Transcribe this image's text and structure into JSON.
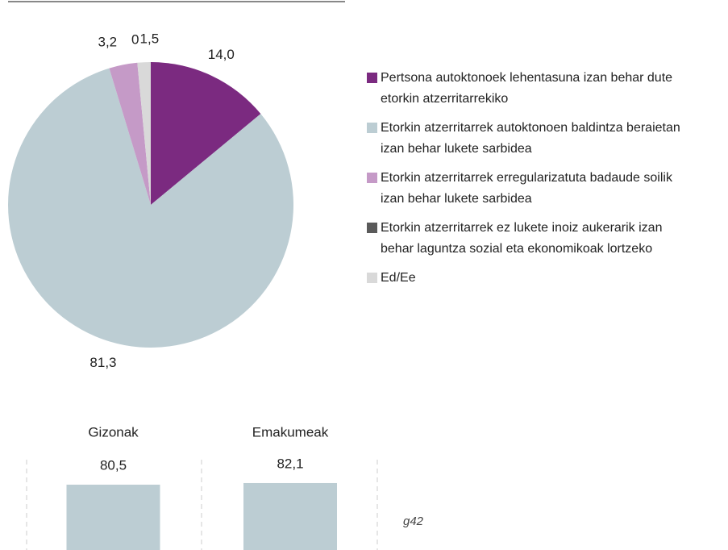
{
  "chart_data": [
    {
      "type": "pie",
      "categories": [
        "Pertsona autoktonoek lehentasuna izan behar dute etorkin atzerritarrekiko",
        "Etorkin atzerritarrek autoktonoen baldintza beraietan izan behar lukete sarbidea",
        "Etorkin atzerritarrek erregularizatuta badaude soilik izan behar lukete sarbidea",
        "Etorkin atzerritarrek ez lukete inoiz aukerarik izan behar laguntza sozial eta ekonomikoak lortzeko",
        "Ed/Ee"
      ],
      "values": [
        14.0,
        81.3,
        3.2,
        0,
        1.5
      ],
      "value_labels": [
        "14,0",
        "81,3",
        "3,2",
        "0",
        "1,5"
      ],
      "colors": [
        "#7b2a80",
        "#bccdd3",
        "#c59ac7",
        "#5a5a5a",
        "#d9d9d9"
      ]
    },
    {
      "type": "bar",
      "categories": [
        "Gizonak",
        "Emakumeak"
      ],
      "values": [
        80.5,
        82.1
      ],
      "value_labels": [
        "80,5",
        "82,1"
      ],
      "color": "#bccdd3",
      "ylim": [
        0,
        100
      ]
    }
  ],
  "footnote": "g42"
}
